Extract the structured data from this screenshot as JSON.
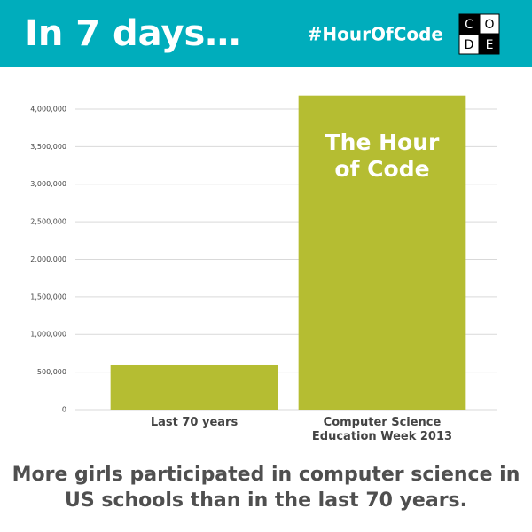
{
  "header": {
    "title": "In 7 days…",
    "hashtag": "#HourOfCode",
    "logo": [
      "C",
      "O",
      "D",
      "E"
    ]
  },
  "chart_data": {
    "type": "bar",
    "categories": [
      "Last 70 years",
      "Computer Science Education Week 2013"
    ],
    "values": [
      590000,
      4180000
    ],
    "color": "#b5bd32",
    "annotation": "The Hour of Code",
    "ylim": [
      0,
      4200000
    ],
    "yticks": [
      0,
      {
        "value": 500000,
        "label": "500,000"
      },
      {
        "value": 1000000,
        "label": "1,000,000"
      },
      {
        "value": 1500000,
        "label": "1,500,000"
      },
      {
        "value": 2000000,
        "label": "2,000,000"
      },
      {
        "value": 2500000,
        "label": "2,500,000"
      },
      {
        "value": 3000000,
        "label": "3,000,000"
      },
      {
        "value": 3500000,
        "label": "3,500,000"
      },
      {
        "value": 4000000,
        "label": "4,000,000"
      }
    ],
    "grid": true
  },
  "caption": "More girls participated in computer science in US schools than in the last 70 years."
}
